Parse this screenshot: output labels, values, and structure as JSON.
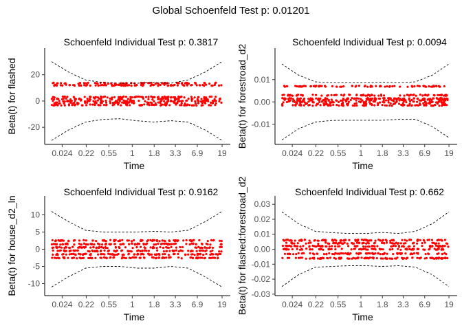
{
  "global_title": "Global Schoenfeld Test p: 0.01201",
  "colors": {
    "points": "#ff0000",
    "band": "#000000",
    "axis": "#000000",
    "tick_text": "#4d4d4d"
  },
  "chart_data": [
    {
      "type": "scatter",
      "title": "Schoenfeld Individual Test p: 0.3817",
      "xlabel": "Time",
      "ylabel": "Beta(t) for flashed",
      "x_ticks": [
        "0.024",
        "0.22",
        "0.55",
        "1",
        "1.8",
        "3.3",
        "6.9",
        "19"
      ],
      "y_ticks": [
        "20",
        "0",
        "-20"
      ],
      "y_tick_values": [
        20,
        0,
        -20
      ],
      "ylim": [
        -33,
        35
      ],
      "point_bands": [
        -3,
        -1.5,
        0,
        1.5,
        3,
        12,
        13.5
      ],
      "band_upper": [
        30,
        22,
        16,
        14,
        13.5,
        13.5,
        14,
        13.5,
        16,
        22,
        30
      ],
      "band_lower": [
        -30,
        -22,
        -16,
        -14,
        -13.5,
        -15,
        -16,
        -15,
        -16,
        -22,
        -30
      ]
    },
    {
      "type": "scatter",
      "title": "Schoenfeld Individual Test p: 0.0094",
      "xlabel": "Time",
      "ylabel": "Beta(t) for forestroad_d2",
      "x_ticks": [
        "0.024",
        "0.22",
        "0.55",
        "1",
        "1.8",
        "3.3",
        "6.9",
        "19"
      ],
      "y_ticks": [
        "0.01",
        "0.00",
        "-0.01"
      ],
      "y_tick_values": [
        0.01,
        0,
        -0.01
      ],
      "ylim": [
        -0.019,
        0.021
      ],
      "point_bands": [
        -0.0015,
        -0.0008,
        0,
        0.0008,
        0.0015,
        0.003,
        0.007
      ],
      "band_upper": [
        0.017,
        0.012,
        0.009,
        0.0085,
        0.0085,
        0.0085,
        0.0088,
        0.0085,
        0.009,
        0.012,
        0.017
      ],
      "band_lower": [
        -0.017,
        -0.012,
        -0.009,
        -0.0083,
        -0.0082,
        -0.0082,
        -0.0082,
        -0.0078,
        -0.0078,
        -0.011,
        -0.016
      ]
    },
    {
      "type": "scatter",
      "title": "Schoenfeld Individual Test p: 0.9162",
      "xlabel": "Time",
      "ylabel": "Beta(t) for house_d2_ln",
      "x_ticks": [
        "0.024",
        "0.22",
        "0.55",
        "1",
        "1.8",
        "3.3",
        "6.9",
        "19"
      ],
      "y_ticks": [
        "10",
        "5",
        "0",
        "-5",
        "-10"
      ],
      "y_tick_values": [
        10,
        5,
        0,
        -5,
        -10
      ],
      "ylim": [
        -13.5,
        13.5
      ],
      "point_bands": [
        -2.5,
        -1.5,
        -0.5,
        0.5,
        1.5,
        2.5
      ],
      "band_upper": [
        11,
        8,
        5.5,
        5,
        5,
        5,
        5.2,
        5,
        5.5,
        8,
        11
      ],
      "band_lower": [
        -11,
        -8,
        -5.5,
        -5,
        -5,
        -5.5,
        -5.5,
        -5,
        -5.5,
        -8,
        -11
      ]
    },
    {
      "type": "scatter",
      "title": "Schoenfeld Individual Test p: 0.662",
      "xlabel": "Time",
      "ylabel": "Beta(t) for flashed:forestroad_d2",
      "x_ticks": [
        "0.024",
        "0.22",
        "0.55",
        "1",
        "1.8",
        "3.3",
        "6.9",
        "19"
      ],
      "y_ticks": [
        "0.03",
        "0.02",
        "0.01",
        "0.00",
        "-0.01",
        "-0.02",
        "-0.03"
      ],
      "y_tick_values": [
        0.03,
        0.02,
        0.01,
        0,
        -0.01,
        -0.02,
        -0.03
      ],
      "ylim": [
        -0.031,
        0.031
      ],
      "point_bands": [
        -0.006,
        -0.003,
        0,
        0.002,
        0.004,
        0.006
      ],
      "band_upper": [
        0.025,
        0.017,
        0.012,
        0.011,
        0.0105,
        0.0105,
        0.0112,
        0.0105,
        0.012,
        0.017,
        0.025
      ],
      "band_lower": [
        -0.025,
        -0.017,
        -0.012,
        -0.0115,
        -0.011,
        -0.011,
        -0.0115,
        -0.011,
        -0.012,
        -0.017,
        -0.025
      ]
    }
  ]
}
